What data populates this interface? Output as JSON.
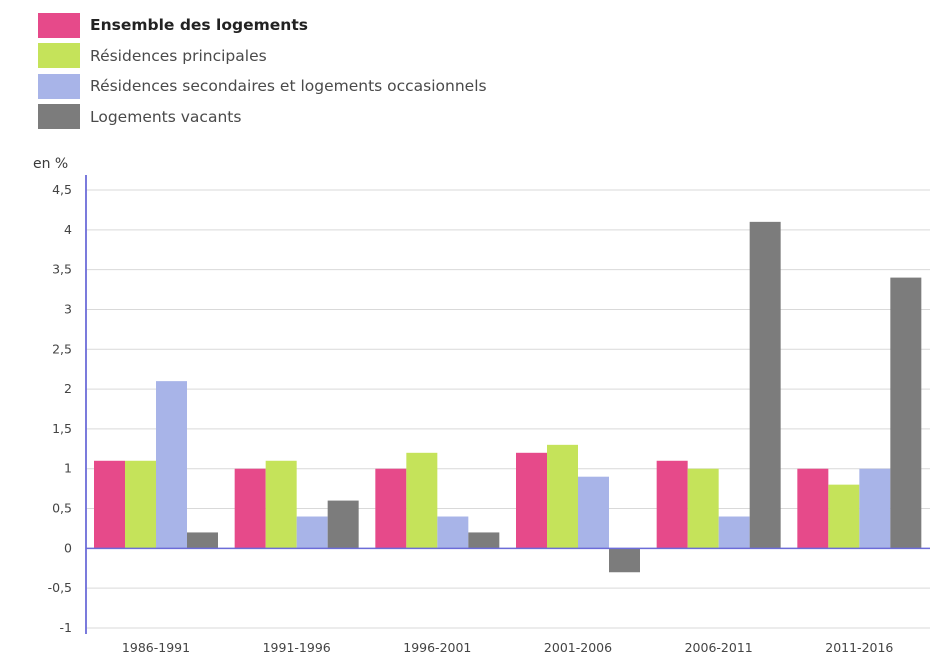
{
  "chart_data": {
    "type": "bar",
    "ylabel": "en %",
    "ylim": [
      -1,
      4.5
    ],
    "ytick_labels": [
      "-1",
      "-0,5",
      "0",
      "0,5",
      "1",
      "1,5",
      "2",
      "2,5",
      "3",
      "3,5",
      "4",
      "4,5"
    ],
    "categories": [
      "1986-1991",
      "1991-1996",
      "1996-2001",
      "2001-2006",
      "2006-2011",
      "2011-2016"
    ],
    "legend_position": "top-left",
    "grid": true,
    "series": [
      {
        "name": "Ensemble des logements",
        "color": "#e64a8a",
        "values": [
          1.1,
          1.0,
          1.0,
          1.2,
          1.1,
          1.0
        ]
      },
      {
        "name": "Résidences principales",
        "color": "#c5e35a",
        "values": [
          1.1,
          1.1,
          1.2,
          1.3,
          1.0,
          0.8
        ]
      },
      {
        "name": "Résidences secondaires et logements occasionnels",
        "color": "#a8b4e8",
        "values": [
          2.1,
          0.4,
          0.4,
          0.9,
          0.4,
          1.0
        ]
      },
      {
        "name": "Logements vacants",
        "color": "#7c7c7c",
        "values": [
          0.2,
          0.6,
          0.2,
          -0.3,
          4.1,
          3.4
        ]
      }
    ]
  }
}
